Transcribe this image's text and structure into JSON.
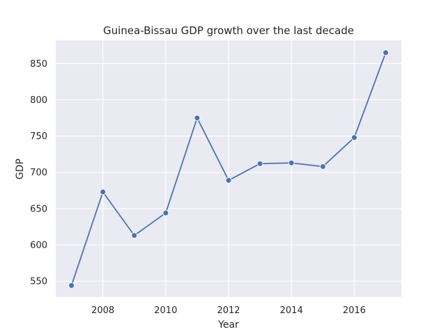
{
  "chart_data": {
    "type": "line",
    "title": "Guinea-Bissau GDP growth over the last decade",
    "xlabel": "Year",
    "ylabel": "GDP",
    "x": [
      2007,
      2008,
      2009,
      2010,
      2011,
      2012,
      2013,
      2014,
      2015,
      2016,
      2017
    ],
    "series": [
      {
        "values": [
          544,
          673,
          613,
          644,
          775,
          689,
          712,
          713,
          708,
          748,
          865
        ]
      }
    ],
    "xticks": [
      2008,
      2010,
      2012,
      2014,
      2016
    ],
    "yticks": [
      550,
      600,
      650,
      700,
      750,
      800,
      850
    ],
    "xlim": [
      2006.5,
      2017.5
    ],
    "ylim": [
      528,
      882
    ],
    "grid": true,
    "style": "seaborn-darkgrid",
    "colors": {
      "background": "#eaeaf2",
      "grid": "#ffffff",
      "line": "#4c72b0",
      "text": "#262626"
    }
  }
}
